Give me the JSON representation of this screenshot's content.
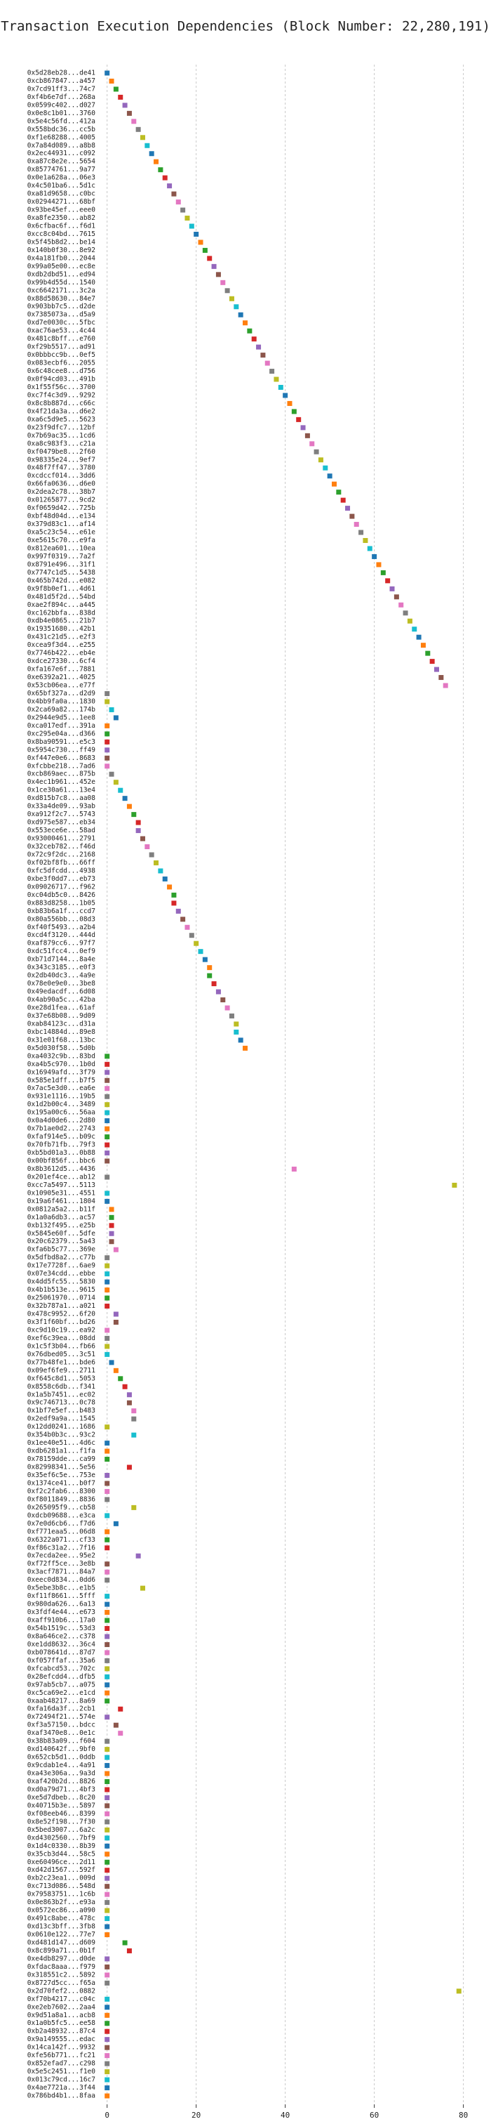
{
  "chart_data": {
    "type": "dot",
    "title": "Transaction Execution Dependencies (Block Number: 22,280,191)",
    "categories": [
      "0x5d28eb28...de41",
      "0xcb867847...a457",
      "0x7cd91ff3...74c7",
      "0xf4b6e7df...268a",
      "0x0599c402...d027",
      "0x0e8c1b01...3760",
      "0x5e4c56fd...412a",
      "0x558bdc36...cc5b",
      "0xf1e68288...4005",
      "0x7a84d089...a8b8",
      "0x2ec44931...c092",
      "0xa87c8e2e...5654",
      "0x85774761...9a77",
      "0x0e1a628a...06e3",
      "0x4c501ba6...5d1c",
      "0xa81d9658...c0bc",
      "0x02944271...68bf",
      "0x93be45ef...eee0",
      "0xa8fe2350...ab82",
      "0x6cfbac6f...f6d1",
      "0xcc8c04bd...7615",
      "0x5f45b8d2...be14",
      "0x140b0f30...8e92",
      "0x4a181fb0...2044",
      "0x99a05e00...ec8e",
      "0xdb2dbd51...ed94",
      "0x99b4d55d...1540",
      "0xc6642171...3c2a",
      "0x88d58630...84e7",
      "0x903bb7c5...d2de",
      "0x7385073a...d5a9",
      "0xd7e0030c...5fbc",
      "0xac76ae53...4c44",
      "0x481c8bff...e760",
      "0xf29b5517...ad91",
      "0x0bbbcc9b...0ef5",
      "0x083ecbf6...2055",
      "0x6c48cee8...d756",
      "0x0f94cd03...491b",
      "0x1f55f56c...3700",
      "0xc7f4c3d9...9292",
      "0x8c8b887d...c66c",
      "0x4f21da3a...d6e2",
      "0xa6c5d9e5...5623",
      "0x23f9dfc7...12bf",
      "0x7b69ac35...1cd6",
      "0xa8c983f3...c21a",
      "0xf0479be8...2f60",
      "0x98335e24...9ef7",
      "0x48f7ff47...3780",
      "0xcdccf014...3dd6",
      "0x66fa0636...d6e0",
      "0x2dea2c78...38b7",
      "0x01265877...9cd2",
      "0xf0659d42...725b",
      "0xbf48d04d...e134",
      "0x379d83c1...af14",
      "0xa5c23c54...e61e",
      "0xe5615c70...e9fa",
      "0x812ea601...10ea",
      "0x997f0319...7a2f",
      "0x8791e496...31f1",
      "0x7747c1d5...5438",
      "0x465b742d...e082",
      "0x9f8b0ef1...4d61",
      "0x481d5f2d...54bd",
      "0xae2f894c...a445",
      "0xc162bbfa...838d",
      "0xdb4e0865...21b7",
      "0x19351680...42b1",
      "0x431c21d5...e2f3",
      "0xcea9f3d4...e255",
      "0x7746b422...eb4e",
      "0xdce27330...6cf4",
      "0xfa167e6f...7881",
      "0xe6392a21...4025",
      "0x53cb06ea...e77f",
      "0x65bf327a...d2d9",
      "0x4bb9fa0a...1830",
      "0x2ca69a82...174b",
      "0x2944e9d5...1ee8",
      "0xca017edf...391a",
      "0xc295e04a...d366",
      "0x8ba90591...e5c3",
      "0x5954c730...ff49",
      "0xf447e0e6...8683",
      "0xfcbbe218...7ad6",
      "0xcb869aec...875b",
      "0x4ec1b961...452e",
      "0x1ce30a61...13e4",
      "0xd815b7c8...aa08",
      "0x33a4de09...93ab",
      "0xa912f2c7...5743",
      "0xd975e587...eb34",
      "0x553ece6e...58ad",
      "0x93000461...2791",
      "0x32ceb782...f46d",
      "0x72c9f2dc...2168",
      "0xf02bf8fb...66ff",
      "0xfc5dfcdd...4938",
      "0xbe3f0dd7...eb73",
      "0x09026717...f962",
      "0xc04db5c0...8426",
      "0x883d8258...1b05",
      "0xb83b6a1f...ccd7",
      "0x80a556bb...08d3",
      "0xf40f5493...a2b4",
      "0xcd4f3120...444d",
      "0xaf879cc6...97f7",
      "0xdc51fcc4...0ef9",
      "0xb71d7144...8a4e",
      "0x343c3185...e0f3",
      "0x2db40dc3...4a9e",
      "0x78e0e9e0...3be8",
      "0x49edacdf...6d08",
      "0x4ab90a5c...42ba",
      "0xe28d1fea...61af",
      "0x37e68b08...9d09",
      "0xab84123c...d31a",
      "0xbc14884d...89e8",
      "0x31e01f68...13bc",
      "0x5d030f58...5d0b",
      "0xa4032c9b...83bd",
      "0xa4b5c970...1b0d",
      "0x16949afd...3f79",
      "0x585e1dff...b7f5",
      "0x7ac5e3d0...ea6e",
      "0x931e1116...19b5",
      "0x1d2b00c4...3489",
      "0x195a00c6...56aa",
      "0x0a4d0de6...2d80",
      "0x7b1ae0d2...2743",
      "0xfaf914e5...b09c",
      "0x70fb71fb...79f3",
      "0xb5bd01a3...0b88",
      "0x00bf856f...bbc6",
      "0x8b3612d5...4436",
      "0x201ef4ce...ab12",
      "0xcc7a5497...5113",
      "0x10905e31...4551",
      "0x19a6f461...1804",
      "0x0812a5a2...b11f",
      "0x1a0a6db3...ac57",
      "0xb132f495...e25b",
      "0x5845e60f...5dfe",
      "0x20c62379...5a43",
      "0xfa6b5c77...369e",
      "0x5dfbd8a2...c77b",
      "0x17e7728f...6ae9",
      "0x07e34cdd...ebbe",
      "0x4dd5fc55...5830",
      "0x4b1b513e...9615",
      "0x25061970...0714",
      "0x32b787a1...a021",
      "0x478c9952...6f20",
      "0x3f1f60bf...bd26",
      "0xc9d10c19...ea92",
      "0xef6c39ea...08dd",
      "0x1c5f3b04...fb66",
      "0x76dbed05...3c51",
      "0x77b48fe1...bde6",
      "0x09ef6fe9...2711",
      "0xf645c8d1...5053",
      "0x8558c6db...f341",
      "0x1a5b7451...ec02",
      "0x9c746713...0c78",
      "0x1bf7e5ef...b483",
      "0x2edf9a9a...1545",
      "0x12dd0241...1686",
      "0x354b0b3c...93c2",
      "0x1ee40e51...4d6c",
      "0xdb6281a1...f1fa",
      "0x78159dde...ca99",
      "0x82998341...5e56",
      "0x35ef6c5e...753e",
      "0x1374ce41...b0f7",
      "0xf2c2fab6...8300",
      "0xf8011849...8836",
      "0x265095f9...cb58",
      "0xdcb09688...e3ca",
      "0x7e0d6cb6...f7d6",
      "0xf771eaa5...06d8",
      "0x6322a071...cf33",
      "0xf86c31a2...7f16",
      "0x7ecda2ee...95e2",
      "0xf72ff5ce...3e8b",
      "0x3acf7871...84a7",
      "0xeec0d834...0dd6",
      "0x5ebe3b8c...e1b5",
      "0xf11f8661...5fff",
      "0x980da626...6a13",
      "0x3fdf4e44...e673",
      "0xaff910b6...17a0",
      "0x54b1519c...53d3",
      "0x8a646ce2...c378",
      "0xe1dd8632...36c4",
      "0xb078641d...87d7",
      "0xf057ffaf...35a6",
      "0xfcabcd53...702c",
      "0x28efcdd4...dfb5",
      "0x97ab5cb7...a075",
      "0xc5ca69e2...e1cd",
      "0xaab48217...8a69",
      "0xfa16da3f...2cb1",
      "0x72494f21...574e",
      "0xf3a57150...bdcc",
      "0xaf3470e8...0e1c",
      "0x38b83a09...f604",
      "0xd140642f...9bf0",
      "0x652cb5d1...0ddb",
      "0x9cdab1e4...4a91",
      "0xa43e306a...9a3d",
      "0xaf420b2d...8826",
      "0xd0a79d71...4bf3",
      "0xe5d7dbeb...8c20",
      "0x40715b3e...5897",
      "0xf08eeb46...8399",
      "0x8e52f198...7f30",
      "0x5bed3007...6a2c",
      "0xd4302560...7bf9",
      "0x1d4c0330...8b39",
      "0x35cb3d44...58c5",
      "0xe60496ce...2d11",
      "0xd42d1567...592f",
      "0xb2c23ea1...009d",
      "0xc713d086...548d",
      "0x79583751...1c6b",
      "0x0e863b2f...e93a",
      "0x0572ec86...a090",
      "0x491c8abe...478c",
      "0xd13c3bff...3fb8",
      "0x0610e122...77e7",
      "0xd481d147...d609",
      "0x8c899a71...0b1f",
      "0xe4db8297...d0de",
      "0xfdac8aaa...f979",
      "0x318551c2...5892",
      "0x8727d5cc...f65a",
      "0x2d70fef2...0882",
      "0xf70b4217...c04c",
      "0xe2eb7602...2aa4",
      "0x9d51a8a1...acb8",
      "0x1a0b5fc5...ee58",
      "0xb2a48932...87c4",
      "0x9a149555...edac",
      "0x14ca142f...9932",
      "0xfe56b771...fc21",
      "0x852efad7...c298",
      "0x5e5c2451...f1e0",
      "0x013c79cd...16c7",
      "0x4ae7721a...3f44",
      "0x786bd4b1...8faa"
    ],
    "values": [
      0,
      1,
      2,
      3,
      4,
      5,
      6,
      7,
      8,
      9,
      10,
      11,
      12,
      13,
      14,
      15,
      16,
      17,
      18,
      19,
      20,
      21,
      22,
      23,
      24,
      25,
      26,
      27,
      28,
      29,
      30,
      31,
      32,
      33,
      34,
      35,
      36,
      37,
      38,
      39,
      40,
      41,
      42,
      43,
      44,
      45,
      46,
      47,
      48,
      49,
      50,
      51,
      52,
      53,
      54,
      55,
      56,
      57,
      58,
      59,
      60,
      61,
      62,
      63,
      64,
      65,
      66,
      67,
      68,
      69,
      70,
      71,
      72,
      73,
      74,
      75,
      76,
      0,
      0,
      1,
      2,
      0,
      0,
      0,
      0,
      0,
      0,
      1,
      2,
      3,
      4,
      5,
      6,
      7,
      7,
      8,
      9,
      10,
      11,
      12,
      13,
      14,
      15,
      15,
      16,
      17,
      18,
      19,
      20,
      21,
      22,
      23,
      23,
      24,
      25,
      26,
      27,
      28,
      29,
      29,
      30,
      31,
      0,
      0,
      0,
      0,
      0,
      0,
      0,
      0,
      0,
      0,
      0,
      0,
      0,
      0,
      42,
      0,
      78,
      0,
      0,
      1,
      1,
      1,
      1,
      1,
      2,
      0,
      0,
      0,
      0,
      0,
      0,
      0,
      2,
      2,
      0,
      0,
      0,
      0,
      1,
      2,
      3,
      4,
      5,
      5,
      6,
      6,
      0,
      6,
      0,
      0,
      0,
      5,
      0,
      0,
      0,
      0,
      6,
      0,
      2,
      0,
      0,
      0,
      7,
      0,
      0,
      0,
      8,
      0,
      0,
      0,
      0,
      0,
      0,
      0,
      0,
      0,
      0,
      0,
      0,
      0,
      0,
      3,
      0,
      2,
      3,
      0,
      0,
      0,
      0,
      0,
      0,
      0,
      0,
      0,
      0,
      0,
      0,
      0,
      0,
      0,
      0,
      0,
      0,
      0,
      0,
      0,
      0,
      0,
      0,
      0,
      4,
      5,
      0,
      0,
      0,
      0,
      79,
      0,
      0,
      0,
      0,
      0,
      0,
      0,
      0,
      0,
      0,
      0,
      0,
      0
    ],
    "palette": [
      "#1f77b4",
      "#ff7f0e",
      "#2ca02c",
      "#d62728",
      "#9467bd",
      "#8c564b",
      "#e377c2",
      "#7f7f7f",
      "#bcbd22",
      "#17becf"
    ],
    "xlim": [
      -2,
      84
    ],
    "xticks": [
      0,
      20,
      40,
      60,
      80
    ],
    "grid": true
  }
}
